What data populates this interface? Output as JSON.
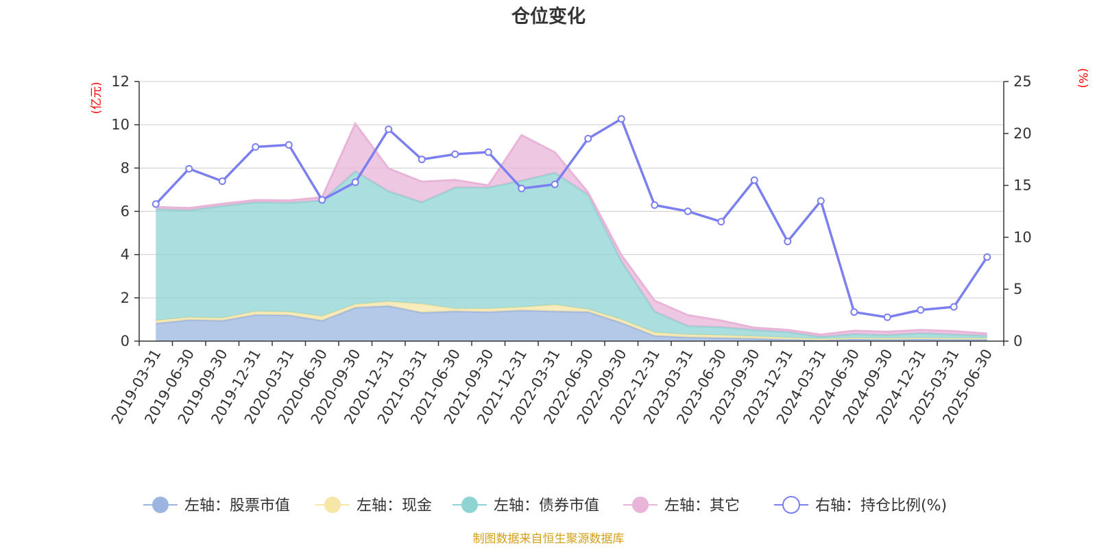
{
  "chart_data": {
    "type": "area",
    "title": "仓位变化",
    "left_unit": "(亿元)",
    "right_unit": "(%)",
    "source": "制图数据来自恒生聚源数据库",
    "categories": [
      "2019-03-31",
      "2019-06-30",
      "2019-09-30",
      "2019-12-31",
      "2020-03-31",
      "2020-06-30",
      "2020-09-30",
      "2020-12-31",
      "2021-03-31",
      "2021-06-30",
      "2021-09-30",
      "2021-12-31",
      "2022-03-31",
      "2022-06-30",
      "2022-09-30",
      "2022-12-31",
      "2023-03-31",
      "2023-06-30",
      "2023-09-30",
      "2023-12-31",
      "2024-03-31",
      "2024-06-30",
      "2024-09-30",
      "2024-12-31",
      "2025-03-31",
      "2025-06-30"
    ],
    "left_axis": {
      "min": 0,
      "max": 12,
      "ticks": [
        "0",
        "2",
        "4",
        "6",
        "8",
        "10",
        "12"
      ]
    },
    "right_axis": {
      "min": 0,
      "max": 25,
      "ticks": [
        "0",
        "5",
        "10",
        "15",
        "20",
        "25"
      ]
    },
    "stacked_series": [
      {
        "name": "左轴：股票市值",
        "color": "#9bb5e0",
        "values": [
          0.82,
          0.98,
          0.95,
          1.22,
          1.2,
          0.95,
          1.55,
          1.63,
          1.32,
          1.38,
          1.35,
          1.42,
          1.38,
          1.35,
          0.85,
          0.25,
          0.18,
          0.15,
          0.12,
          0.08,
          0.05,
          0.1,
          0.08,
          0.1,
          0.08,
          0.08
        ]
      },
      {
        "name": "左轴：现金",
        "color": "#f7e6a6",
        "values": [
          0.13,
          0.12,
          0.12,
          0.15,
          0.15,
          0.2,
          0.15,
          0.2,
          0.4,
          0.12,
          0.15,
          0.15,
          0.3,
          0.12,
          0.15,
          0.15,
          0.12,
          0.12,
          0.1,
          0.08,
          0.05,
          0.05,
          0.05,
          0.05,
          0.05,
          0.05
        ]
      },
      {
        "name": "左轴：债券市值",
        "color": "#8fd3d3",
        "values": [
          5.15,
          4.95,
          5.18,
          5.05,
          5.05,
          5.35,
          6.15,
          5.1,
          4.7,
          5.6,
          5.6,
          5.85,
          6.1,
          5.3,
          2.7,
          0.97,
          0.4,
          0.38,
          0.3,
          0.26,
          0.1,
          0.18,
          0.15,
          0.22,
          0.18,
          0.12
        ]
      },
      {
        "name": "左轴：其它",
        "color": "#e8b4d8",
        "values": [
          0.1,
          0.1,
          0.1,
          0.1,
          0.1,
          0.15,
          2.2,
          1.05,
          0.95,
          0.35,
          0.1,
          2.1,
          0.95,
          0.1,
          0.28,
          0.5,
          0.5,
          0.3,
          0.1,
          0.1,
          0.1,
          0.15,
          0.15,
          0.15,
          0.15,
          0.1
        ]
      }
    ],
    "line_series": {
      "name": "右轴：持仓比例(%)",
      "color": "#7b7ff0",
      "values": [
        13.2,
        16.6,
        15.4,
        18.7,
        18.9,
        13.6,
        15.3,
        20.4,
        17.5,
        18.0,
        18.2,
        14.7,
        15.1,
        19.5,
        21.4,
        13.1,
        12.5,
        11.5,
        15.5,
        9.6,
        13.5,
        2.8,
        2.3,
        3.0,
        3.3,
        8.1
      ]
    },
    "legend": [
      {
        "label": "左轴：股票市值",
        "color": "#9bb5e0",
        "hollow": false
      },
      {
        "label": "左轴：现金",
        "color": "#f7e6a6",
        "hollow": false
      },
      {
        "label": "左轴：债券市值",
        "color": "#8fd3d3",
        "hollow": false
      },
      {
        "label": "左轴：其它",
        "color": "#e8b4d8",
        "hollow": false
      },
      {
        "label": "右轴：持仓比例(%)",
        "color": "#7b7ff0",
        "hollow": true
      }
    ],
    "grid": true,
    "legend_position": "bottom"
  }
}
